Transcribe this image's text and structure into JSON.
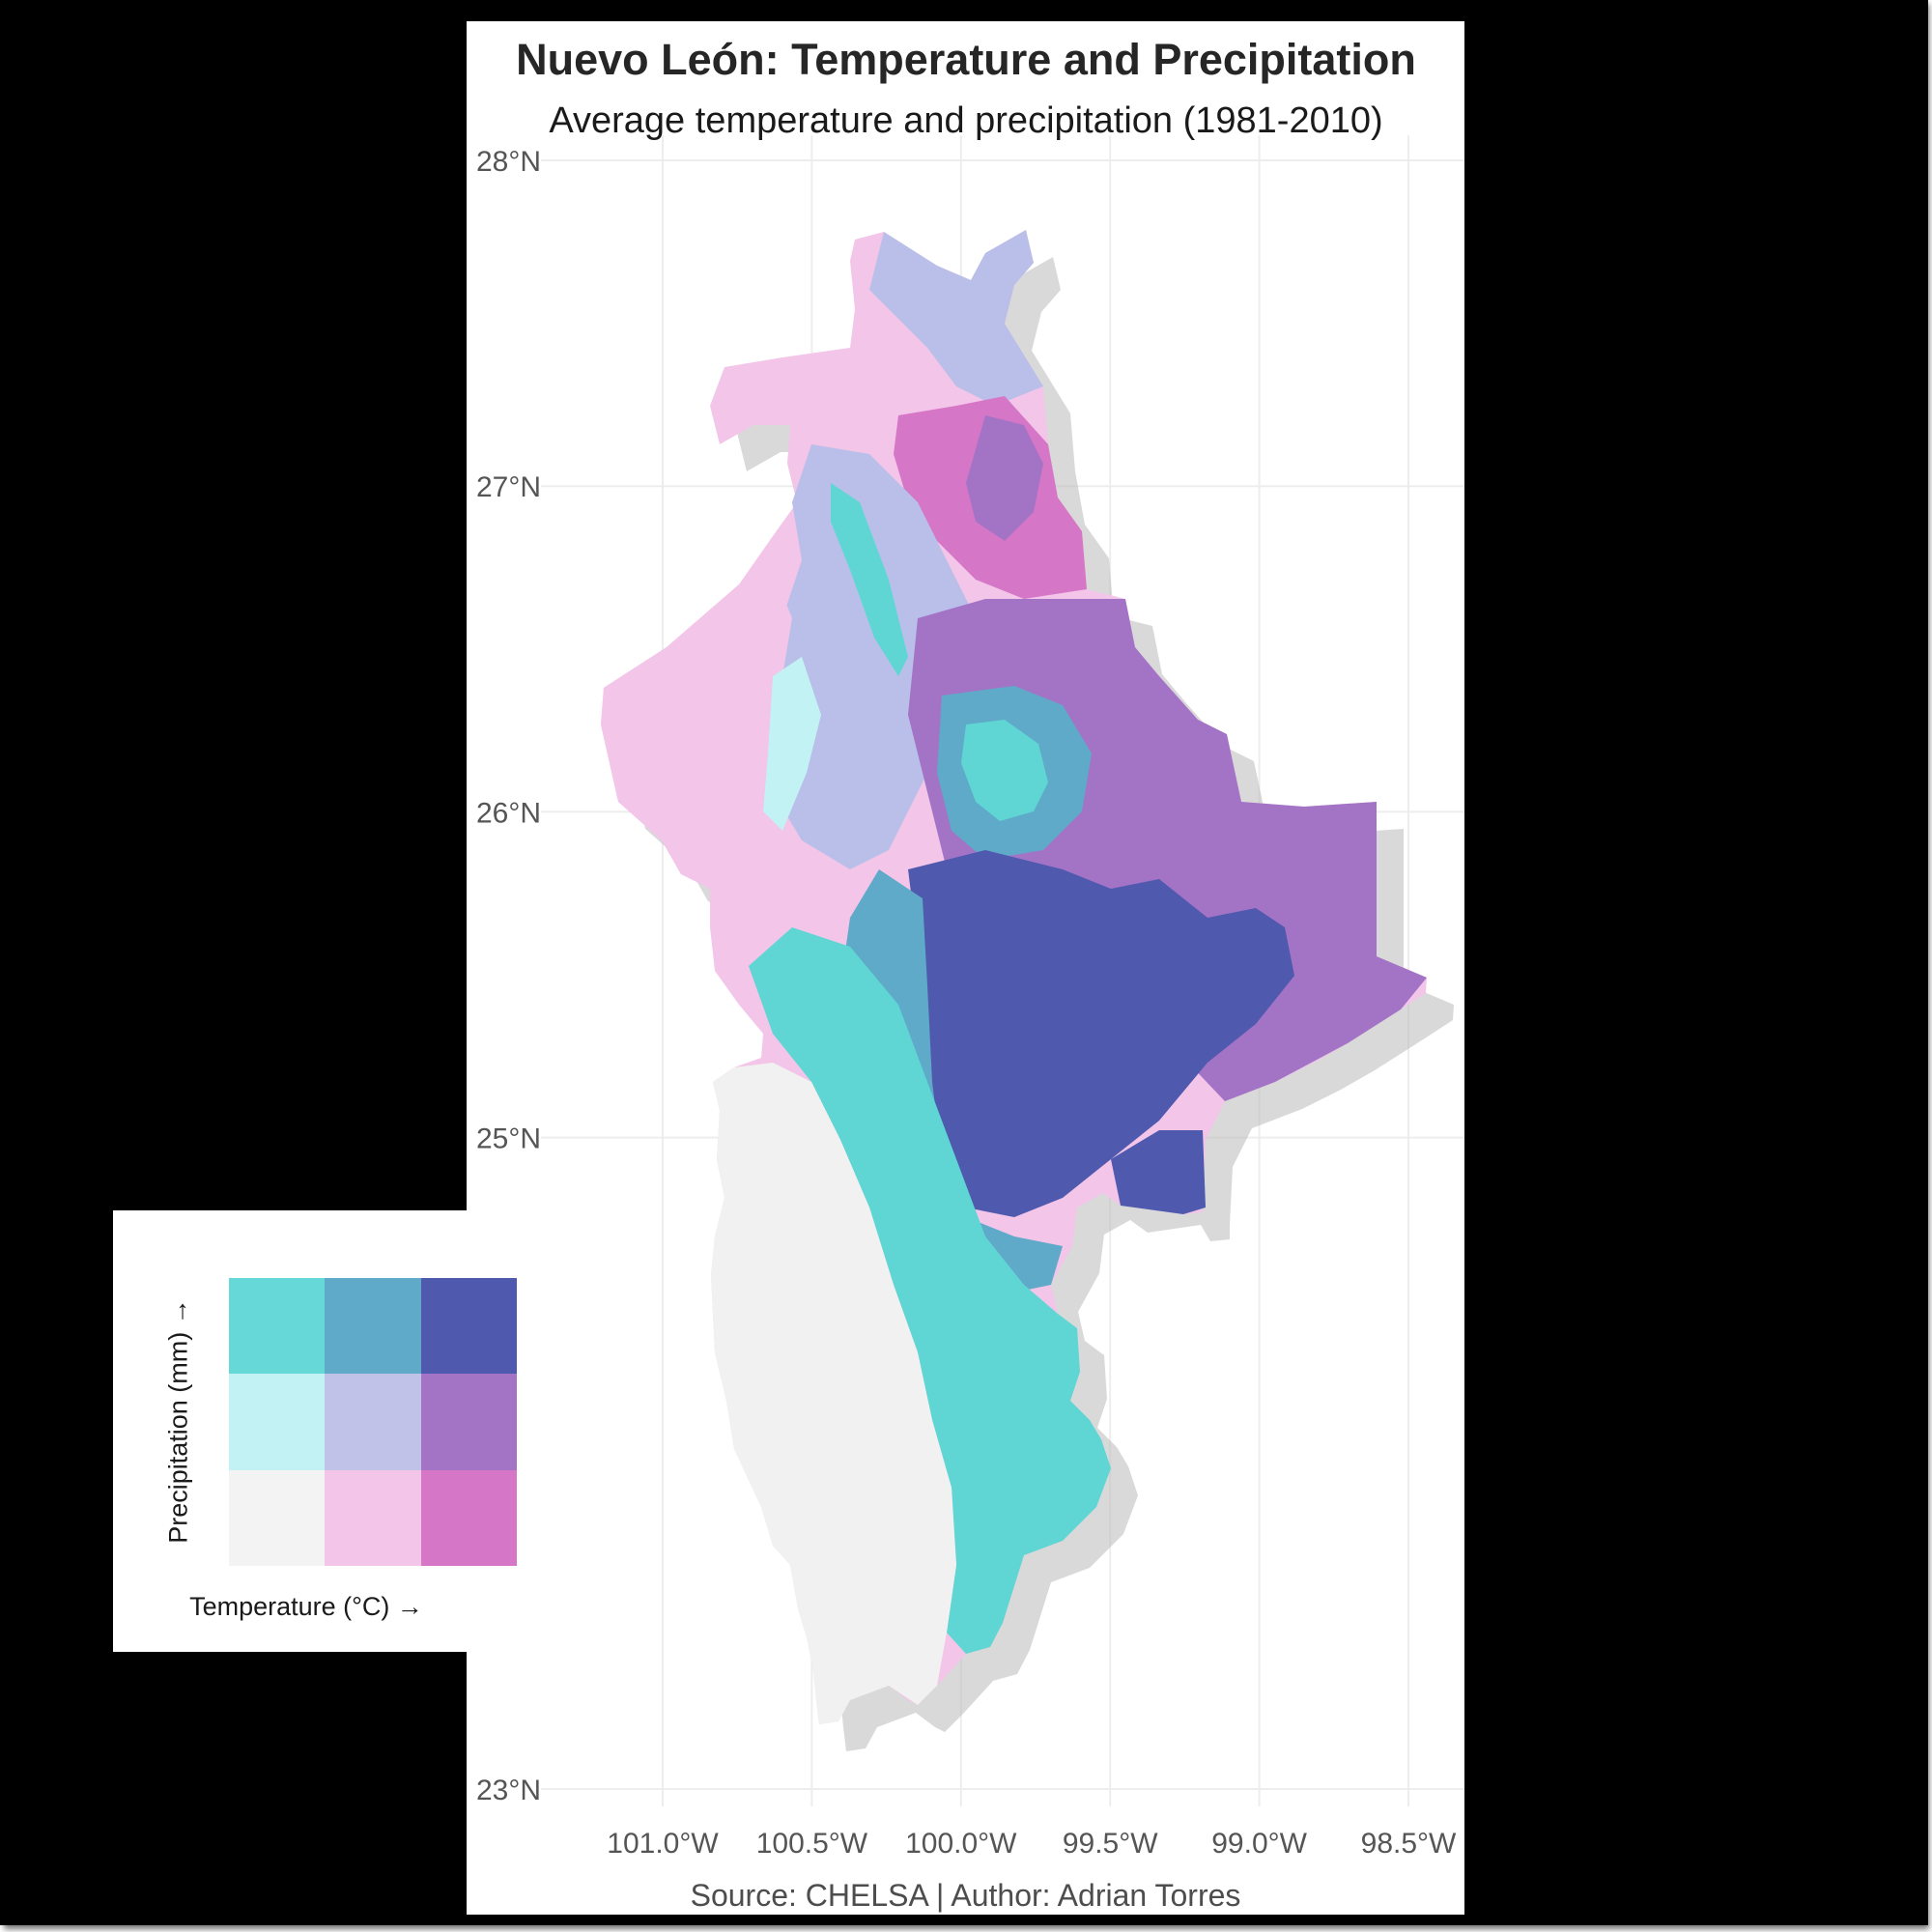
{
  "title": "Nuevo León: Temperature and Precipitation",
  "subtitle": "Average temperature and precipitation (1981-2010)",
  "caption": "Source: CHELSA | Author: Adrian Torres",
  "lat_ticks": [
    {
      "value": 28,
      "label": "28°N"
    },
    {
      "value": 27,
      "label": "27°N"
    },
    {
      "value": 26,
      "label": "26°N"
    },
    {
      "value": 25,
      "label": "25°N"
    },
    {
      "value": 23,
      "label": "23°N"
    }
  ],
  "lon_ticks": [
    {
      "value": -101.0,
      "label": "101.0°W"
    },
    {
      "value": -100.5,
      "label": "100.5°W"
    },
    {
      "value": -100.0,
      "label": "100.0°W"
    },
    {
      "value": -99.5,
      "label": "99.5°W"
    },
    {
      "value": -99.0,
      "label": "99.0°W"
    },
    {
      "value": -98.5,
      "label": "98.5°W"
    }
  ],
  "legend": {
    "x_label": "Temperature (°C) →",
    "y_label": "Precipitation (mm) →",
    "colors": [
      [
        "#66d8d8",
        "#5fa9c9",
        "#4f59ae"
      ],
      [
        "#c2f2f4",
        "#c0c2e7",
        "#a374c6"
      ],
      [
        "#f3f3f3",
        "#f2c5e9",
        "#d676c6"
      ]
    ]
  },
  "map_colors": {
    "cool_wet": "#5fd6d4",
    "mid_wet": "#5fa9c9",
    "hot_wet": "#4f59ae",
    "cool_mid": "#c2f2f4",
    "mid_mid": "#b9bfe8",
    "hot_mid": "#a374c6",
    "cool_dry": "#f1f1f1",
    "mid_dry": "#f2c5e9",
    "hot_dry": "#d676c6"
  }
}
